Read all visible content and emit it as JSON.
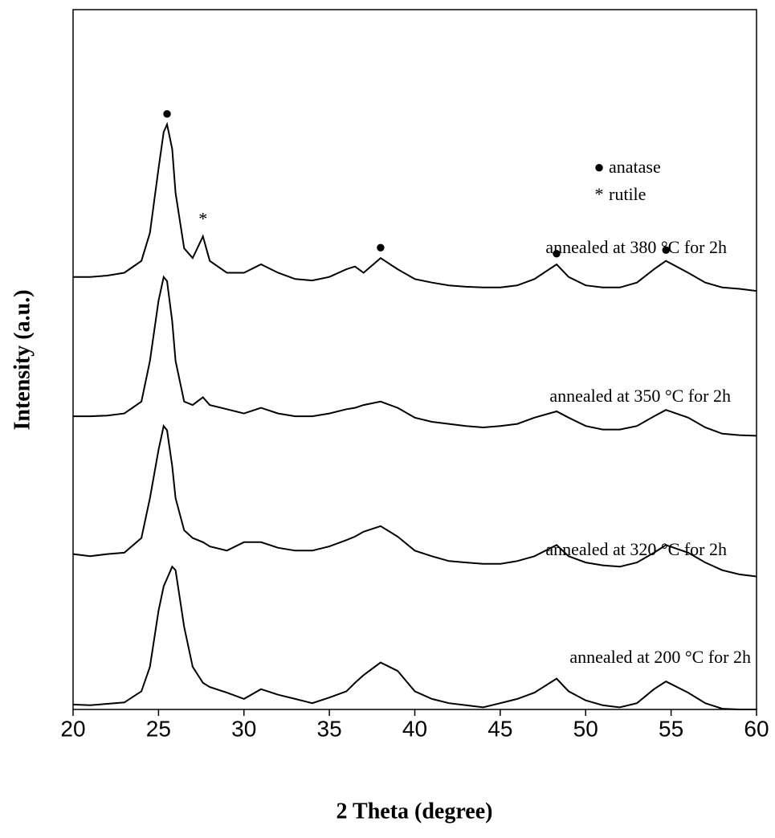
{
  "chart_data": {
    "type": "line",
    "xlabel": "2 Theta (degree)",
    "ylabel": "Intensity (a.u.)",
    "xlim": [
      20,
      60
    ],
    "xticks": [
      20,
      25,
      30,
      35,
      40,
      45,
      50,
      55,
      60
    ],
    "ylim": [
      0,
      100
    ],
    "x": [
      20,
      21,
      22,
      23,
      24,
      24.5,
      25,
      25.3,
      25.5,
      25.8,
      26,
      26.5,
      27,
      27.6,
      28,
      29,
      30,
      31,
      32,
      33,
      34,
      35,
      36,
      36.5,
      37,
      38,
      39,
      40,
      41,
      42,
      43,
      44,
      45,
      46,
      47,
      48.3,
      49,
      50,
      51,
      52,
      53,
      54,
      54.7,
      56,
      57,
      58,
      59,
      60
    ],
    "series": [
      {
        "name": "annealed at 380 °C for 2h",
        "color": "#000000",
        "values": [
          61.8,
          61.8,
          62.0,
          62.4,
          64.1,
          68.1,
          77.3,
          82.5,
          83.6,
          80.1,
          73.8,
          65.9,
          64.5,
          67.6,
          64.1,
          62.4,
          62.4,
          63.6,
          62.4,
          61.5,
          61.3,
          61.8,
          62.9,
          63.3,
          62.4,
          64.5,
          62.9,
          61.5,
          61.0,
          60.6,
          60.4,
          60.3,
          60.3,
          60.6,
          61.5,
          63.6,
          61.8,
          60.6,
          60.3,
          60.3,
          61.0,
          62.9,
          64.1,
          62.4,
          61.0,
          60.3,
          60.1,
          59.8
        ]
      },
      {
        "name": "annealed at 350 °C for 2h",
        "color": "#000000",
        "values": [
          41.9,
          41.9,
          42.0,
          42.3,
          44.0,
          49.8,
          58.4,
          61.8,
          61.2,
          55.5,
          49.8,
          44.0,
          43.5,
          44.6,
          43.5,
          42.9,
          42.3,
          43.1,
          42.3,
          41.9,
          41.9,
          42.3,
          42.9,
          43.1,
          43.5,
          44.0,
          43.1,
          41.7,
          41.1,
          40.8,
          40.5,
          40.3,
          40.5,
          40.8,
          41.7,
          42.6,
          41.7,
          40.5,
          40.0,
          40.0,
          40.5,
          41.9,
          42.8,
          41.7,
          40.3,
          39.4,
          39.2,
          39.1
        ]
      },
      {
        "name": "annealed at 320 °C for 2h",
        "color": "#000000",
        "values": [
          22.2,
          21.9,
          22.2,
          22.4,
          24.5,
          30.2,
          37.1,
          40.5,
          39.9,
          34.8,
          30.2,
          25.6,
          24.5,
          23.9,
          23.3,
          22.7,
          23.9,
          23.9,
          23.1,
          22.7,
          22.7,
          23.3,
          24.2,
          24.7,
          25.4,
          26.2,
          24.7,
          22.7,
          21.9,
          21.2,
          21.0,
          20.8,
          20.8,
          21.2,
          21.9,
          23.5,
          21.9,
          21.0,
          20.6,
          20.4,
          21.0,
          22.4,
          23.5,
          22.4,
          21.0,
          19.9,
          19.3,
          19.0
        ]
      },
      {
        "name": "annealed at 200 °C for 2h",
        "color": "#000000",
        "values": [
          0.7,
          0.6,
          0.8,
          1.0,
          2.6,
          6.1,
          14.1,
          17.6,
          18.7,
          20.4,
          19.9,
          11.8,
          6.1,
          3.8,
          3.2,
          2.4,
          1.5,
          2.9,
          2.1,
          1.5,
          0.9,
          1.7,
          2.6,
          3.8,
          4.9,
          6.7,
          5.5,
          2.6,
          1.5,
          0.9,
          0.6,
          0.3,
          0.9,
          1.5,
          2.4,
          4.4,
          2.6,
          1.3,
          0.6,
          0.3,
          0.9,
          2.9,
          4.0,
          2.4,
          0.9,
          0.1,
          0.0,
          0.0
        ]
      }
    ],
    "legend": [
      {
        "symbol": "●",
        "label": "anatase"
      },
      {
        "symbol": "*",
        "label": "rutile"
      }
    ],
    "markers": [
      {
        "symbol": "●",
        "x": [
          25.5,
          38,
          48.3,
          54.7
        ]
      },
      {
        "symbol": "*",
        "x": [
          27.6
        ]
      }
    ]
  }
}
